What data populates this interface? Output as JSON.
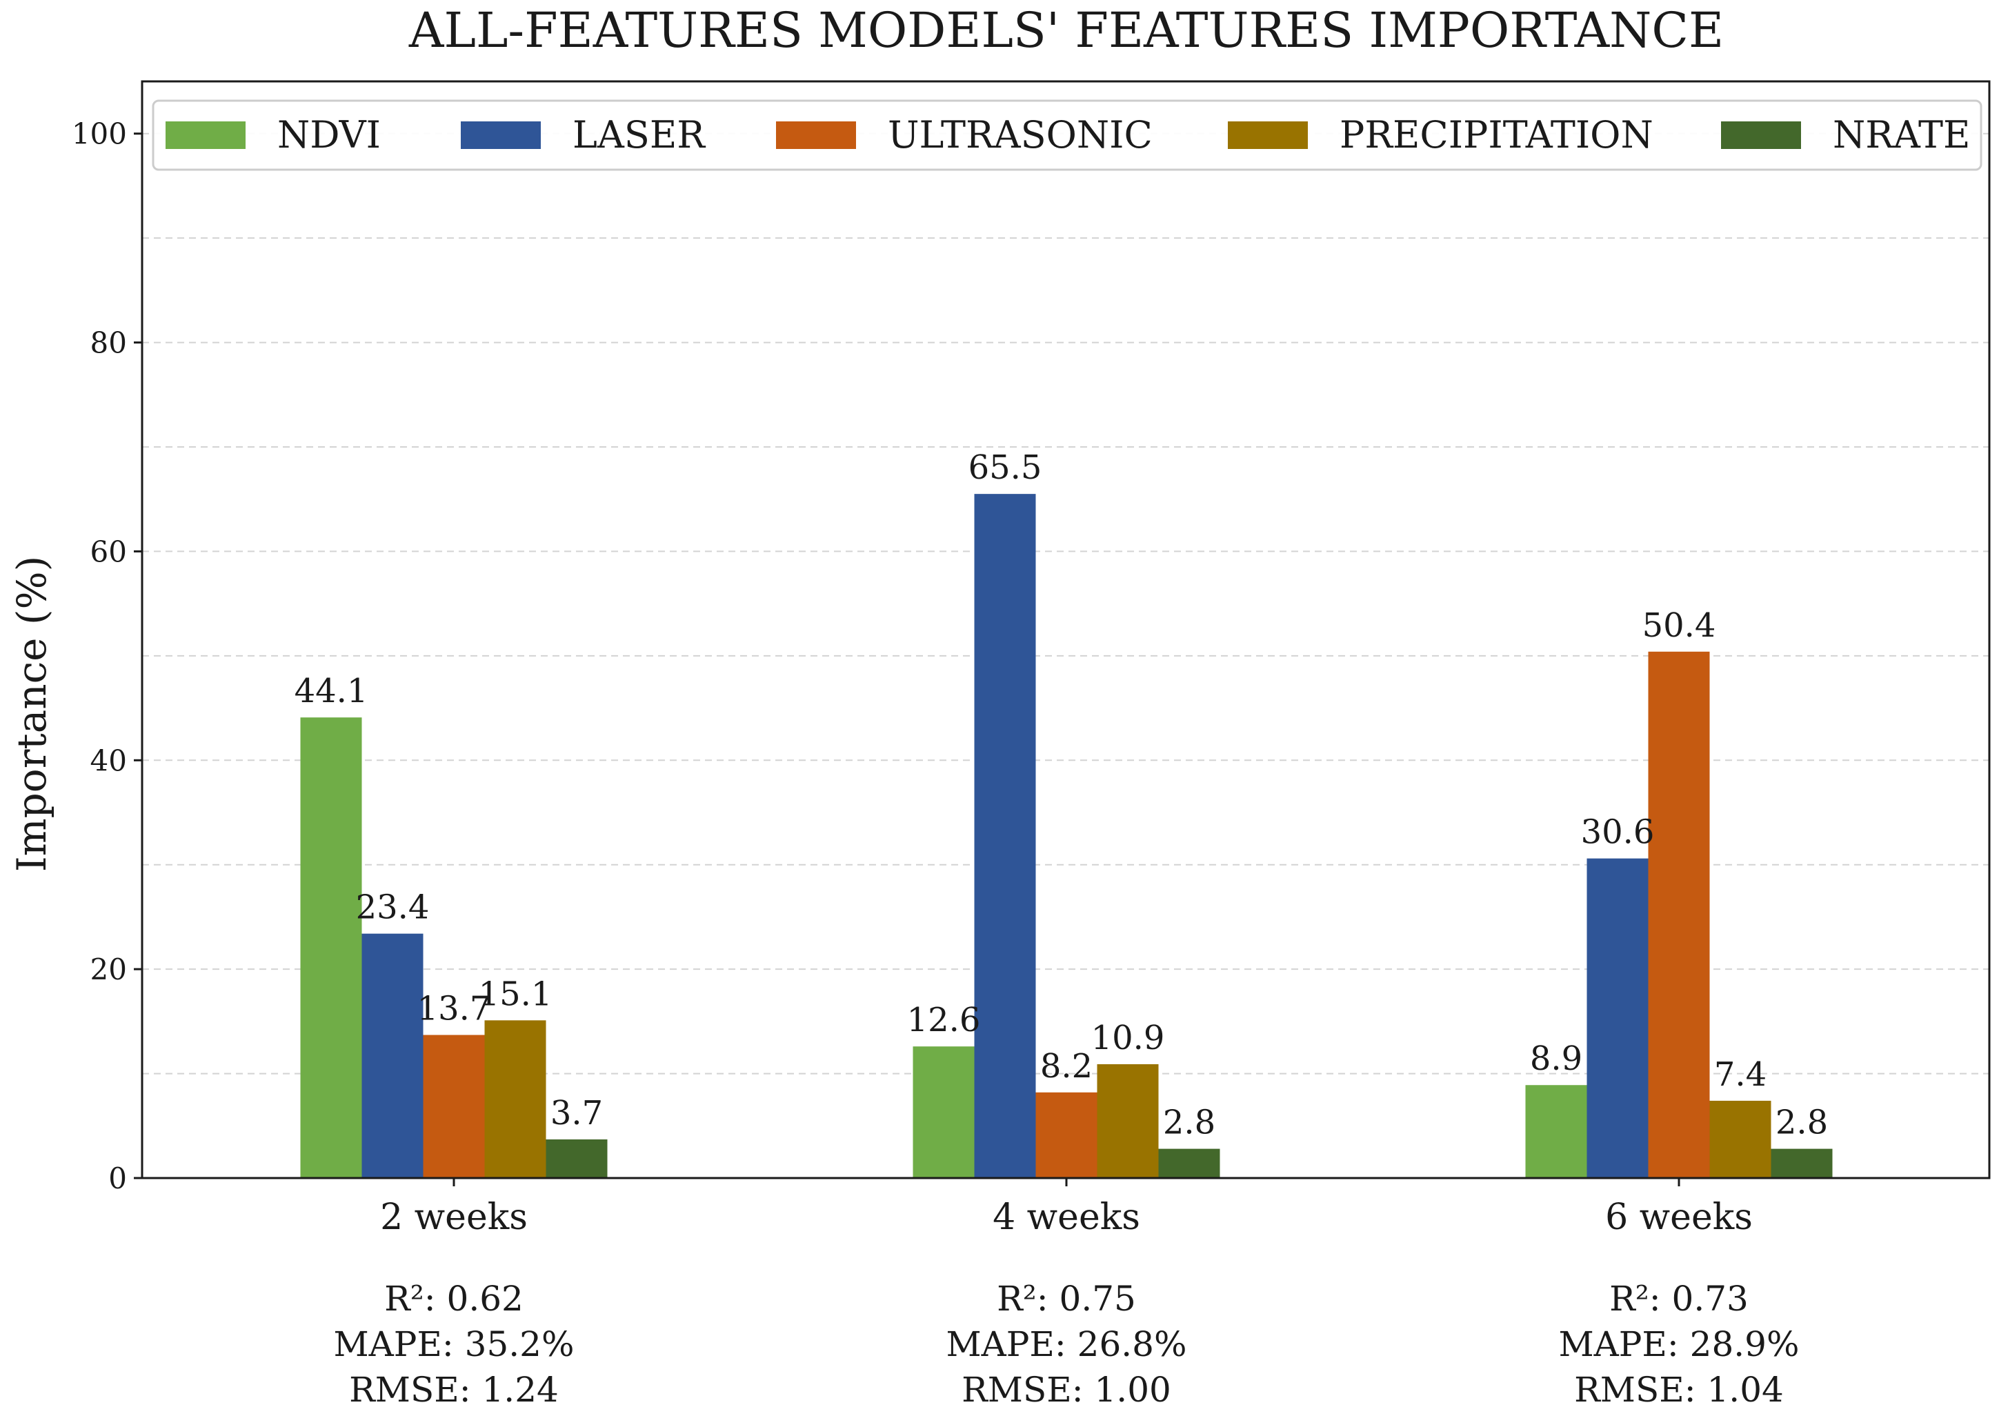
{
  "chart_data": {
    "type": "bar",
    "title": "ALL-FEATURES MODELS' FEATURES IMPORTANCE",
    "xlabel": "",
    "ylabel": "Importance (%)",
    "ylim": [
      0,
      105
    ],
    "yticks": [
      0,
      20,
      40,
      60,
      80,
      100
    ],
    "grid": true,
    "legend_position": "top",
    "categories": [
      "2 weeks",
      "4 weeks",
      "6 weeks"
    ],
    "category_metrics": [
      [
        "R²: 0.62",
        "MAPE: 35.2%",
        "RMSE: 1.24"
      ],
      [
        "R²: 0.75",
        "MAPE: 26.8%",
        "RMSE: 1.00"
      ],
      [
        "R²: 0.73",
        "MAPE: 28.9%",
        "RMSE: 1.04"
      ]
    ],
    "series": [
      {
        "name": "NDVI",
        "color": "#70ad47",
        "values": [
          44.1,
          12.6,
          8.9
        ]
      },
      {
        "name": "LASER",
        "color": "#2f5597",
        "values": [
          23.4,
          65.5,
          30.6
        ]
      },
      {
        "name": "ULTRASONIC",
        "color": "#c55a11",
        "values": [
          13.7,
          8.2,
          50.4
        ]
      },
      {
        "name": "PRECIPITATION",
        "color": "#997300",
        "values": [
          15.1,
          10.9,
          7.4
        ]
      },
      {
        "name": "NRATE",
        "color": "#43682b",
        "values": [
          3.7,
          2.8,
          2.8
        ]
      }
    ]
  }
}
